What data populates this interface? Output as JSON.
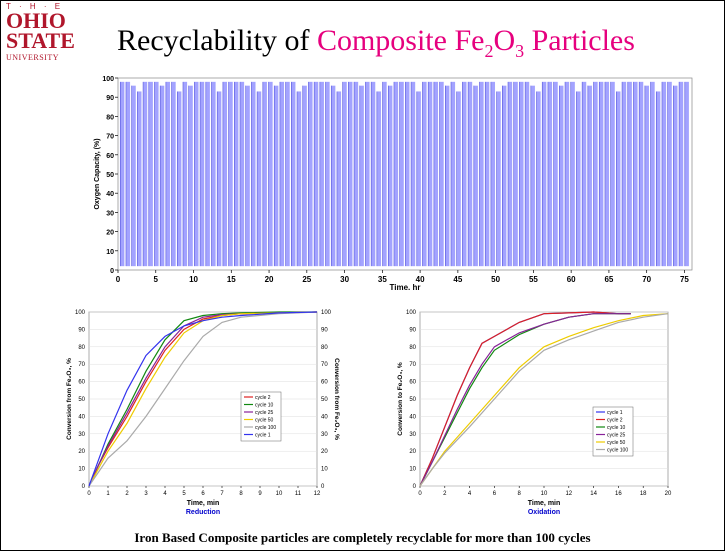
{
  "logo": {
    "the": "T · H · E",
    "ohio": "OHIO",
    "state": "STATE",
    "university": "UNIVERSITY"
  },
  "title": {
    "prefix": "Recyclability of ",
    "highlight": "Composite Fe",
    "sub1": "2",
    "mid": "O",
    "sub2": "3",
    "suffix": " Particles"
  },
  "caption": "Iron Based Composite particles are completely recyclable for more than 100 cycles",
  "colors": {
    "accent": "#e6007e",
    "logo": "#b0162b",
    "cycle_fill": "#9999ff",
    "subtitle_blue": "#0000cc"
  },
  "chart_data": [
    {
      "type": "area",
      "title": "",
      "xlabel": "Time, hr",
      "ylabel": "Oxygen Capacity, (%)",
      "xlim": [
        0,
        76
      ],
      "ylim": [
        0,
        100
      ],
      "xticks": [
        0,
        5,
        10,
        15,
        20,
        25,
        30,
        35,
        40,
        45,
        50,
        55,
        60,
        65,
        70,
        75
      ],
      "yticks": [
        0,
        10,
        20,
        30,
        40,
        50,
        60,
        70,
        80,
        90,
        100
      ],
      "cycles": 100,
      "upper_level_approx": 98,
      "lower_level_approx": 2
    },
    {
      "type": "line",
      "xlabel": "Time, min",
      "subtitle": "Reduction",
      "ylabel": "Conversion from Fe₂O₃, %",
      "ylabel_right": "Conversion from Fe₂O₃, %",
      "xlim": [
        0,
        12
      ],
      "ylim": [
        0,
        100
      ],
      "xticks": [
        0,
        1,
        2,
        3,
        4,
        5,
        6,
        7,
        8,
        9,
        10,
        11,
        12
      ],
      "yticks": [
        0,
        10,
        20,
        30,
        40,
        50,
        60,
        70,
        80,
        90,
        100
      ],
      "legend_position": "center-right",
      "series": [
        {
          "name": "cycle 2",
          "color": "#dd2222",
          "x": [
            0,
            0.5,
            1,
            2,
            3,
            4,
            5,
            6,
            7,
            8,
            10,
            12
          ],
          "y": [
            0,
            12,
            22,
            40,
            60,
            78,
            90,
            96,
            98,
            99,
            99.5,
            100
          ]
        },
        {
          "name": "cycle 10",
          "color": "#118811",
          "x": [
            0,
            0.5,
            1,
            2,
            3,
            4,
            5,
            6,
            7,
            8,
            10,
            12
          ],
          "y": [
            0,
            12,
            24,
            44,
            66,
            84,
            95,
            98,
            99,
            99.5,
            100,
            100
          ]
        },
        {
          "name": "cycle 25",
          "color": "#882299",
          "x": [
            0,
            0.5,
            1,
            2,
            3,
            4,
            5,
            6,
            7,
            8,
            10,
            12
          ],
          "y": [
            0,
            12,
            23,
            42,
            62,
            80,
            92,
            97,
            98.5,
            99,
            99.5,
            100
          ]
        },
        {
          "name": "cycle 50",
          "color": "#eecc00",
          "x": [
            0,
            0.5,
            1,
            2,
            3,
            4,
            5,
            6,
            7,
            8,
            10,
            12
          ],
          "y": [
            0,
            10,
            20,
            36,
            56,
            74,
            88,
            95,
            98,
            99,
            99.5,
            100
          ]
        },
        {
          "name": "cycle 100",
          "color": "#aaaaaa",
          "x": [
            0,
            0.5,
            1,
            2,
            3,
            4,
            5,
            6,
            7,
            8,
            10,
            12
          ],
          "y": [
            0,
            8,
            16,
            26,
            40,
            56,
            72,
            86,
            94,
            97,
            99,
            100
          ]
        },
        {
          "name": "cycle 1",
          "color": "#3333ee",
          "x": [
            0,
            0.5,
            1,
            2,
            3,
            4,
            5,
            6,
            7,
            8,
            10,
            12
          ],
          "y": [
            0,
            15,
            30,
            55,
            75,
            86,
            92,
            95,
            97,
            98,
            99.5,
            100
          ]
        }
      ]
    },
    {
      "type": "line",
      "xlabel": "Time, min",
      "subtitle": "Oxidation",
      "ylabel": "Conversion to Fe₂O₃, %",
      "xlim": [
        0,
        20
      ],
      "ylim": [
        0,
        100
      ],
      "xticks": [
        0,
        2,
        4,
        6,
        8,
        10,
        12,
        14,
        16,
        18,
        20
      ],
      "yticks": [
        0,
        10,
        20,
        30,
        40,
        50,
        60,
        70,
        80,
        90,
        100
      ],
      "legend_position": "lower-right",
      "series": [
        {
          "name": "cycle 1",
          "color": "#3333ee",
          "x": [
            0,
            1,
            2,
            3,
            4,
            5,
            6,
            8,
            10,
            12,
            14,
            16,
            17
          ],
          "y": [
            0,
            16,
            34,
            52,
            68,
            82,
            86,
            94,
            99,
            99.5,
            100,
            99,
            99
          ]
        },
        {
          "name": "cycle 2",
          "color": "#dd2222",
          "x": [
            0,
            1,
            2,
            3,
            4,
            5,
            6,
            8,
            10,
            12,
            14,
            16,
            17
          ],
          "y": [
            0,
            16,
            34,
            52,
            68,
            82,
            86,
            94,
            99,
            99.5,
            100,
            99,
            99
          ]
        },
        {
          "name": "cycle 10",
          "color": "#118811",
          "x": [
            0,
            1,
            2,
            3,
            4,
            5,
            6,
            8,
            10,
            12,
            14,
            16,
            17
          ],
          "y": [
            0,
            14,
            28,
            42,
            56,
            68,
            78,
            87,
            93,
            97,
            99,
            99,
            99
          ]
        },
        {
          "name": "cycle 25",
          "color": "#882299",
          "x": [
            0,
            1,
            2,
            3,
            4,
            5,
            6,
            8,
            10,
            12,
            14,
            16,
            17
          ],
          "y": [
            0,
            14,
            29,
            44,
            58,
            70,
            80,
            88,
            93,
            97,
            99,
            99,
            99
          ]
        },
        {
          "name": "cycle 50",
          "color": "#eecc00",
          "x": [
            0,
            1,
            2,
            4,
            6,
            8,
            10,
            12,
            14,
            16,
            18,
            20
          ],
          "y": [
            0,
            10,
            20,
            36,
            52,
            68,
            80,
            86,
            91,
            95,
            98,
            99
          ]
        },
        {
          "name": "cycle 100",
          "color": "#aaaaaa",
          "x": [
            0,
            1,
            2,
            4,
            6,
            8,
            10,
            12,
            14,
            16,
            18,
            20
          ],
          "y": [
            0,
            10,
            19,
            34,
            50,
            66,
            78,
            84,
            89,
            94,
            97,
            99
          ]
        }
      ]
    }
  ]
}
